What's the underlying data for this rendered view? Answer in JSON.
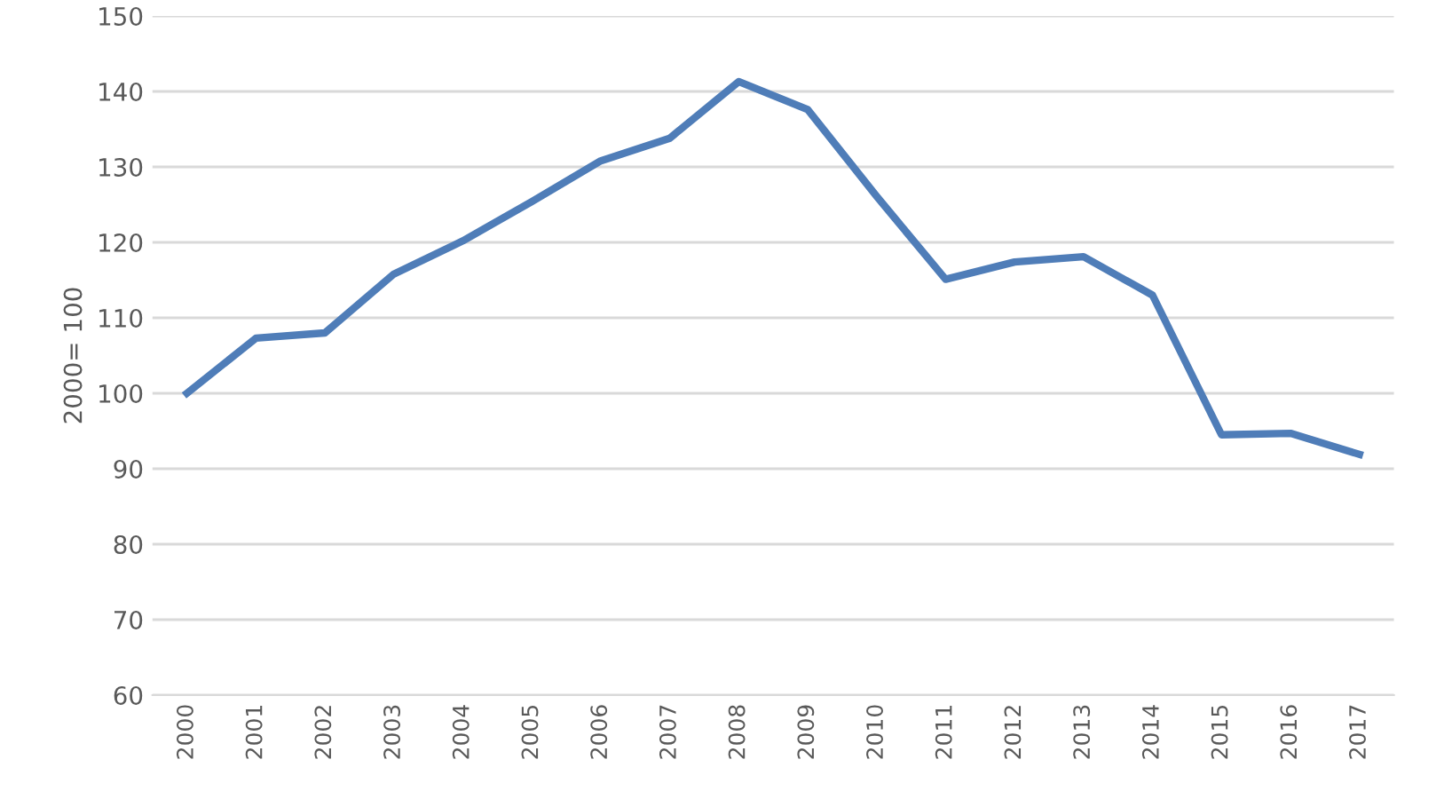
{
  "chart_data": {
    "type": "line",
    "ylabel": "2000= 100",
    "categories": [
      "2000",
      "2001",
      "2002",
      "2003",
      "2004",
      "2005",
      "2006",
      "2007",
      "2008",
      "2009",
      "2010",
      "2011",
      "2012",
      "2013",
      "2014",
      "2015",
      "2016",
      "2017"
    ],
    "series": [
      {
        "color": "#4f7db8",
        "values": [
          100,
          107.3,
          108.0,
          115.8,
          120.2,
          125.4,
          130.8,
          133.8,
          141.3,
          137.6,
          126.1,
          115.1,
          117.4,
          118.1,
          113.0,
          94.5,
          94.7,
          91.9
        ]
      }
    ],
    "ylim": [
      60,
      150
    ],
    "yticks": [
      60,
      70,
      80,
      90,
      100,
      110,
      120,
      130,
      140,
      150
    ],
    "grid": "y",
    "legend": false,
    "marker": "none",
    "line_style": "solid"
  }
}
